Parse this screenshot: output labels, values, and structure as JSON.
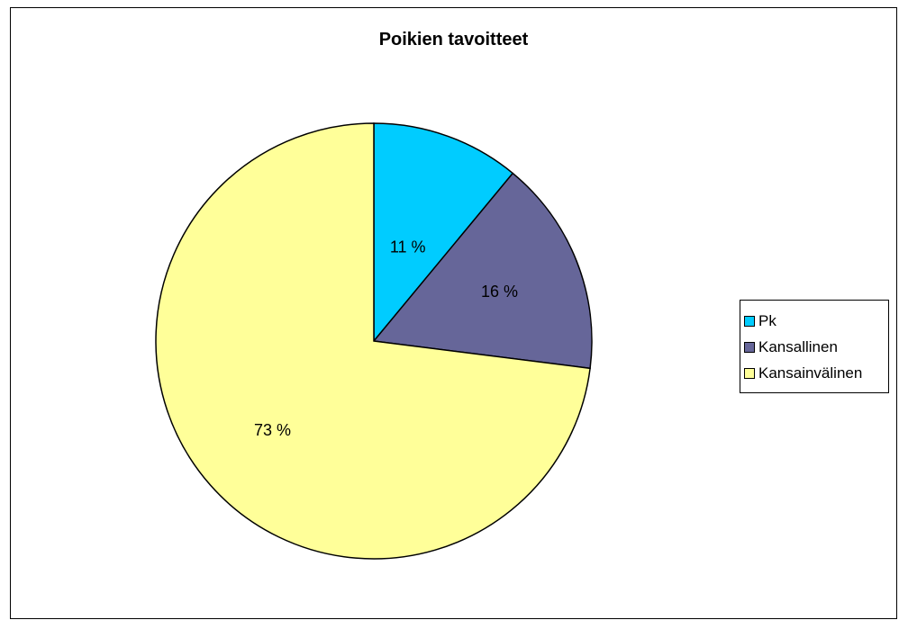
{
  "chart_data": {
    "type": "pie",
    "title": "Poikien tavoitteet",
    "categories": [
      "Pk",
      "Kansallinen",
      "Kansainvälinen"
    ],
    "values": [
      11,
      16,
      73
    ],
    "data_labels": [
      "11 %",
      "16 %",
      "73 %"
    ],
    "colors": [
      "#00ccff",
      "#666699",
      "#ffff99"
    ],
    "legend_position": "right"
  }
}
